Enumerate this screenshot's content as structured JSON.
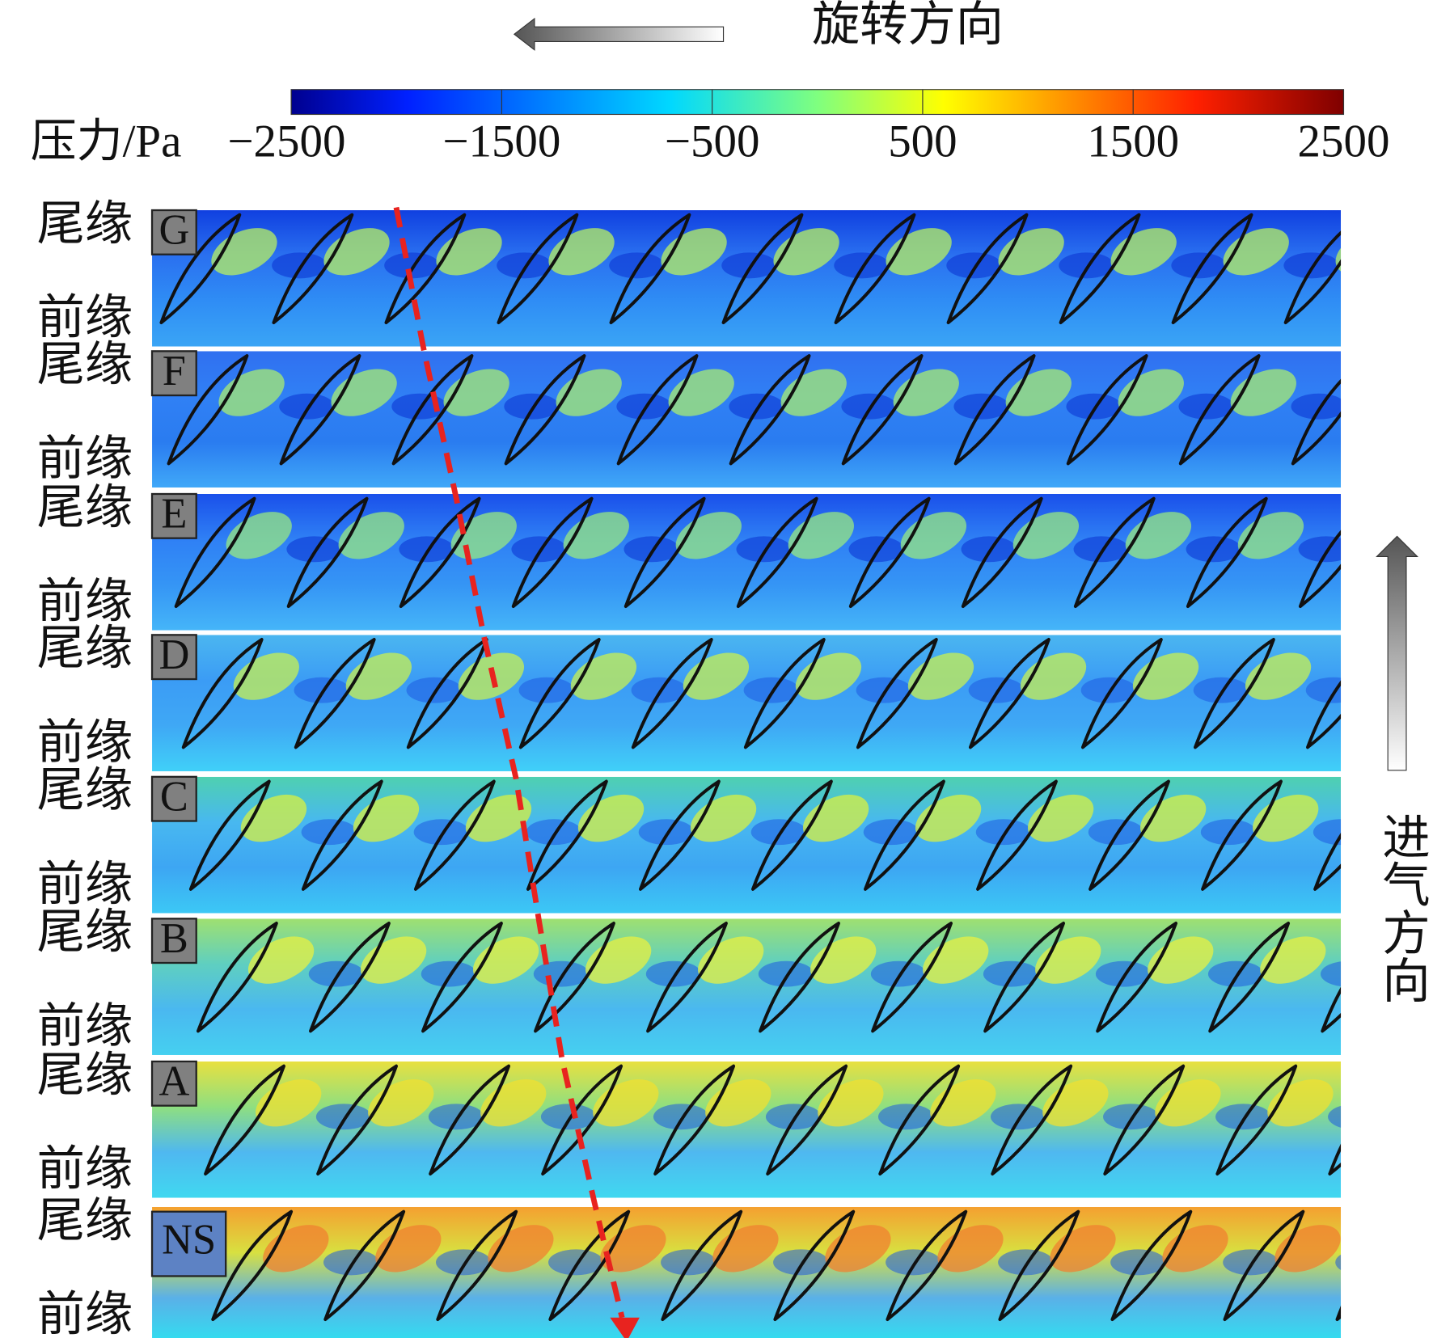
{
  "header": {
    "rotation_label": "旋转方向",
    "inflow_label": "进气方向"
  },
  "colorbar": {
    "label": "压力/Pa",
    "ticks": [
      "−2500",
      "−1500",
      "−500",
      "500",
      "1500",
      "2500"
    ]
  },
  "panels": [
    {
      "tag": "G",
      "trailing_edge": "尾缘",
      "leading_edge": "前缘"
    },
    {
      "tag": "F",
      "trailing_edge": "尾缘",
      "leading_edge": "前缘"
    },
    {
      "tag": "E",
      "trailing_edge": "尾缘",
      "leading_edge": "前缘"
    },
    {
      "tag": "D",
      "trailing_edge": "尾缘",
      "leading_edge": "前缘"
    },
    {
      "tag": "C",
      "trailing_edge": "尾缘",
      "leading_edge": "前缘"
    },
    {
      "tag": "B",
      "trailing_edge": "尾缘",
      "leading_edge": "前缘"
    },
    {
      "tag": "A",
      "trailing_edge": "尾缘",
      "leading_edge": "前缘"
    },
    {
      "tag": "NS",
      "trailing_edge": "尾缘",
      "leading_edge": "前缘"
    }
  ]
}
